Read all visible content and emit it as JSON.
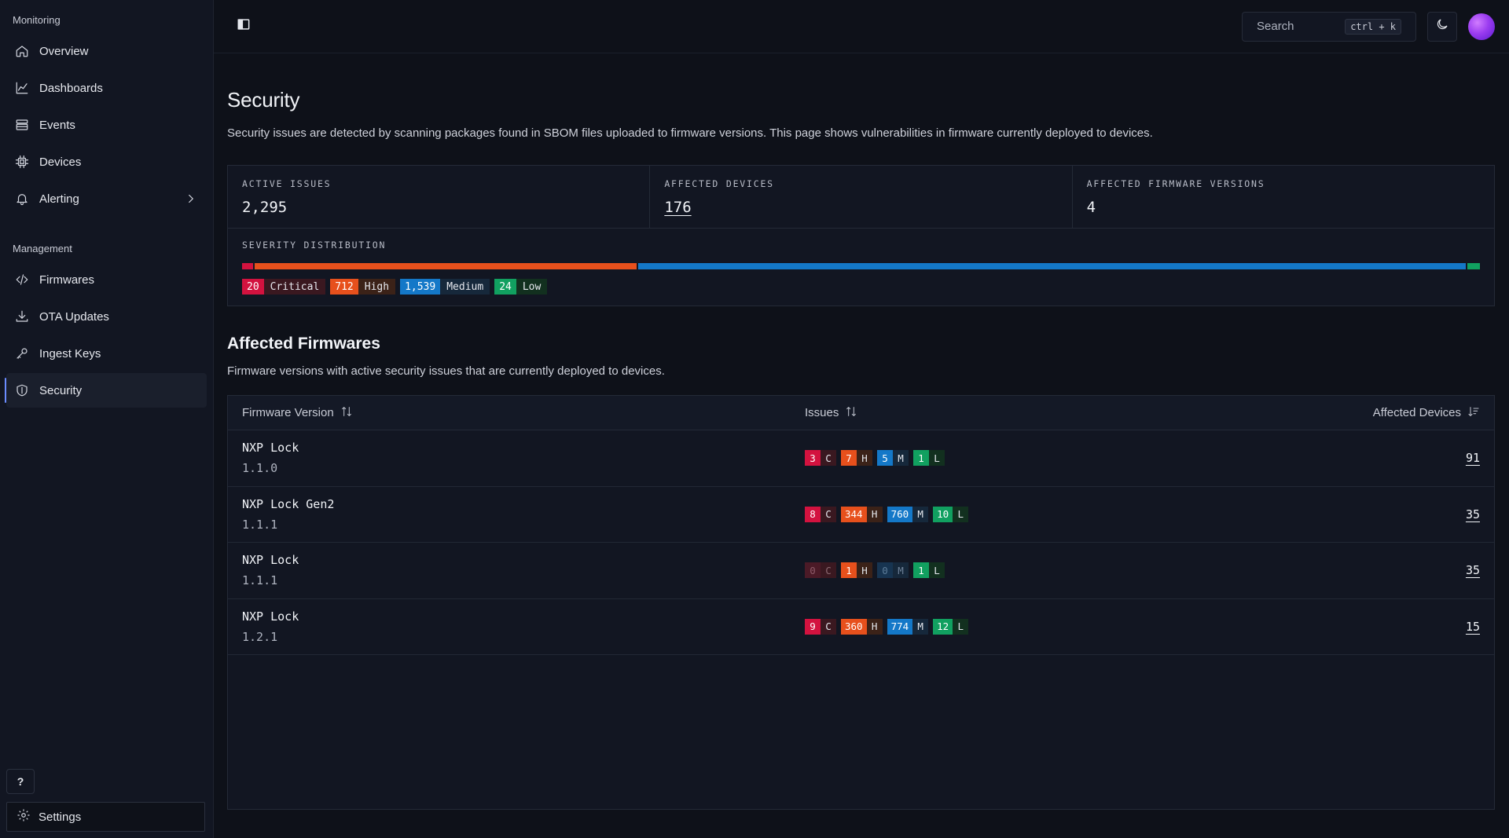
{
  "sidebar": {
    "monitoring_label": "Monitoring",
    "monitoring_items": [
      {
        "label": "Overview",
        "icon": "home-icon"
      },
      {
        "label": "Dashboards",
        "icon": "chart-line-icon"
      },
      {
        "label": "Events",
        "icon": "events-icon"
      },
      {
        "label": "Devices",
        "icon": "chip-icon"
      },
      {
        "label": "Alerting",
        "icon": "bell-icon"
      }
    ],
    "management_label": "Management",
    "management_items": [
      {
        "label": "Firmwares",
        "icon": "code-icon"
      },
      {
        "label": "OTA Updates",
        "icon": "download-icon"
      },
      {
        "label": "Ingest Keys",
        "icon": "key-icon"
      },
      {
        "label": "Security",
        "icon": "shield-icon",
        "active": true
      }
    ],
    "help_label": "?",
    "settings_label": "Settings"
  },
  "topbar": {
    "search_placeholder": "Search",
    "search_shortcut": "ctrl + k"
  },
  "page": {
    "title": "Security",
    "description": "Security issues are detected by scanning packages found in SBOM files uploaded to firmware versions. This page shows vulnerabilities in firmware currently deployed to devices."
  },
  "stats": {
    "active_issues_label": "ACTIVE ISSUES",
    "active_issues_value": "2,295",
    "affected_devices_label": "AFFECTED DEVICES",
    "affected_devices_value": "176",
    "affected_firmware_label": "AFFECTED FIRMWARE VERSIONS",
    "affected_firmware_value": "4"
  },
  "distribution": {
    "label": "SEVERITY DISTRIBUTION",
    "segments": [
      {
        "name": "Critical",
        "value": 20,
        "display": "20",
        "color": "#d3123f"
      },
      {
        "name": "High",
        "value": 712,
        "display": "712",
        "color": "#e7501c"
      },
      {
        "name": "Medium",
        "value": 1539,
        "display": "1,539",
        "color": "#1478c8"
      },
      {
        "name": "Low",
        "value": 24,
        "display": "24",
        "color": "#11a060"
      }
    ]
  },
  "affected": {
    "title": "Affected Firmwares",
    "description": "Firmware versions with active security issues that are currently deployed to devices.",
    "columns": {
      "firmware": "Firmware Version",
      "issues": "Issues",
      "devices": "Affected Devices"
    },
    "rows": [
      {
        "name": "NXP Lock",
        "version": "1.1.0",
        "c": "3",
        "h": "7",
        "m": "5",
        "l": "1",
        "devices": "91"
      },
      {
        "name": "NXP Lock Gen2",
        "version": "1.1.1",
        "c": "8",
        "h": "344",
        "m": "760",
        "l": "10",
        "devices": "35"
      },
      {
        "name": "NXP Lock",
        "version": "1.1.1",
        "c": "0",
        "h": "1",
        "m": "0",
        "l": "1",
        "devices": "35"
      },
      {
        "name": "NXP Lock",
        "version": "1.2.1",
        "c": "9",
        "h": "360",
        "m": "774",
        "l": "12",
        "devices": "15"
      }
    ],
    "severity_letters": {
      "c": "C",
      "h": "H",
      "m": "M",
      "l": "L"
    }
  }
}
